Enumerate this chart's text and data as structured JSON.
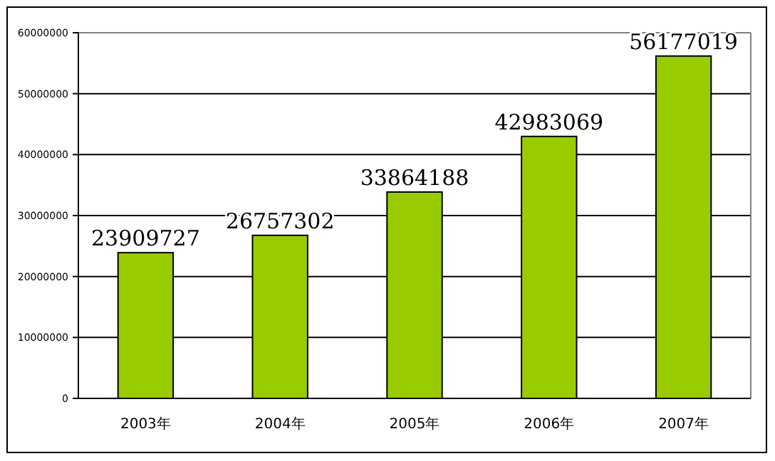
{
  "chart_data": {
    "type": "bar",
    "categories": [
      "2003年",
      "2004年",
      "2005年",
      "2006年",
      "2007年"
    ],
    "values": [
      23909727,
      26757302,
      33864188,
      42983069,
      56177019
    ],
    "color": "#99cc00",
    "data_labels": true,
    "grid": "y",
    "legend": false,
    "ylim": [
      0,
      60000000
    ],
    "yticks": [
      0,
      10000000,
      20000000,
      30000000,
      40000000,
      50000000,
      60000000
    ]
  }
}
